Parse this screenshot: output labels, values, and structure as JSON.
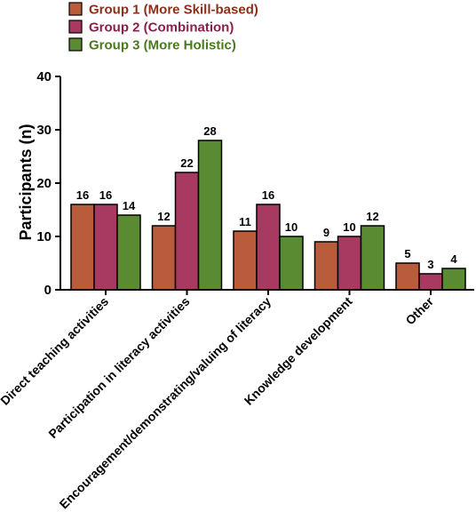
{
  "chart_data": {
    "type": "bar",
    "categories": [
      "Direct teaching activities",
      "Participation in literacy activities",
      "Encouragement/demonstrating/valuing of literacy",
      "Knowledge development",
      "Other"
    ],
    "series": [
      {
        "name": "Group 1 (More Skill-based)",
        "values": [
          16,
          12,
          11,
          9,
          5
        ],
        "color": "#b85c3c",
        "label_color": "#8b2e1a"
      },
      {
        "name": "Group 2 (Combination)",
        "values": [
          16,
          22,
          16,
          10,
          3
        ],
        "color": "#a83a62",
        "label_color": "#8b1f4a"
      },
      {
        "name": "Group 3 (More Holistic)",
        "values": [
          14,
          28,
          10,
          12,
          4
        ],
        "color": "#5a8a32",
        "label_color": "#4a7a1f"
      }
    ],
    "ylabel": "Participants (n)",
    "xlabel": "",
    "ylim": [
      0,
      40
    ],
    "yticks": [
      0,
      10,
      20,
      30,
      40
    ],
    "legend_position": "top-left",
    "grid": false
  }
}
